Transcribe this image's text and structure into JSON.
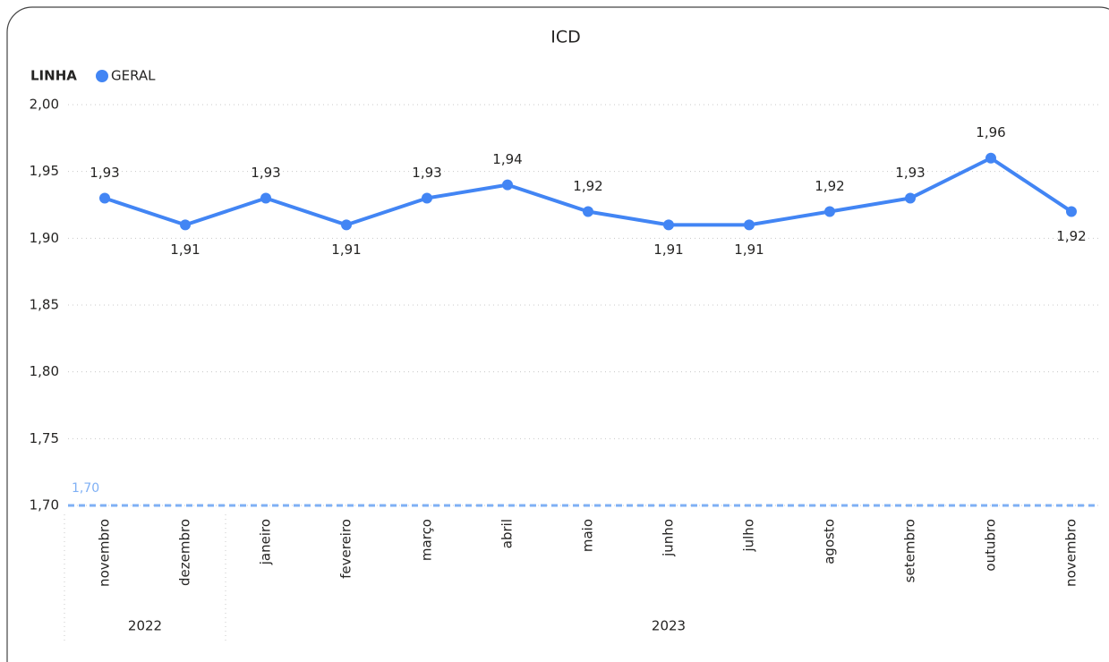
{
  "chart_data": {
    "type": "line",
    "title": "ICD",
    "legend_title": "LINHA",
    "category_groups": [
      {
        "label": "2022",
        "categories": [
          "novembro",
          "dezembro"
        ]
      },
      {
        "label": "2023",
        "categories": [
          "janeiro",
          "fevereiro",
          "março",
          "abril",
          "maio",
          "junho",
          "julho",
          "agosto",
          "setembro",
          "outubro",
          "novembro"
        ]
      }
    ],
    "series": [
      {
        "name": "GERAL",
        "color": "#4285f4",
        "values": [
          1.93,
          1.91,
          1.93,
          1.91,
          1.93,
          1.94,
          1.92,
          1.91,
          1.91,
          1.92,
          1.93,
          1.96,
          1.92
        ],
        "value_labels": [
          "1,93",
          "1,91",
          "1,93",
          "1,91",
          "1,93",
          "1,94",
          "1,92",
          "1,91",
          "1,91",
          "1,92",
          "1,93",
          "1,96",
          "1,92"
        ]
      }
    ],
    "ylim": [
      1.7,
      2.0
    ],
    "yticks": [
      {
        "value": 1.7,
        "label": "1,70"
      },
      {
        "value": 1.75,
        "label": "1,75"
      },
      {
        "value": 1.8,
        "label": "1,80"
      },
      {
        "value": 1.85,
        "label": "1,85"
      },
      {
        "value": 1.9,
        "label": "1,90"
      },
      {
        "value": 1.95,
        "label": "1,95"
      },
      {
        "value": 2.0,
        "label": "2,00"
      }
    ],
    "grid": true,
    "reference_lines": [
      {
        "value": 1.7,
        "label": "1,70",
        "color": "#7fb0f5"
      }
    ]
  }
}
